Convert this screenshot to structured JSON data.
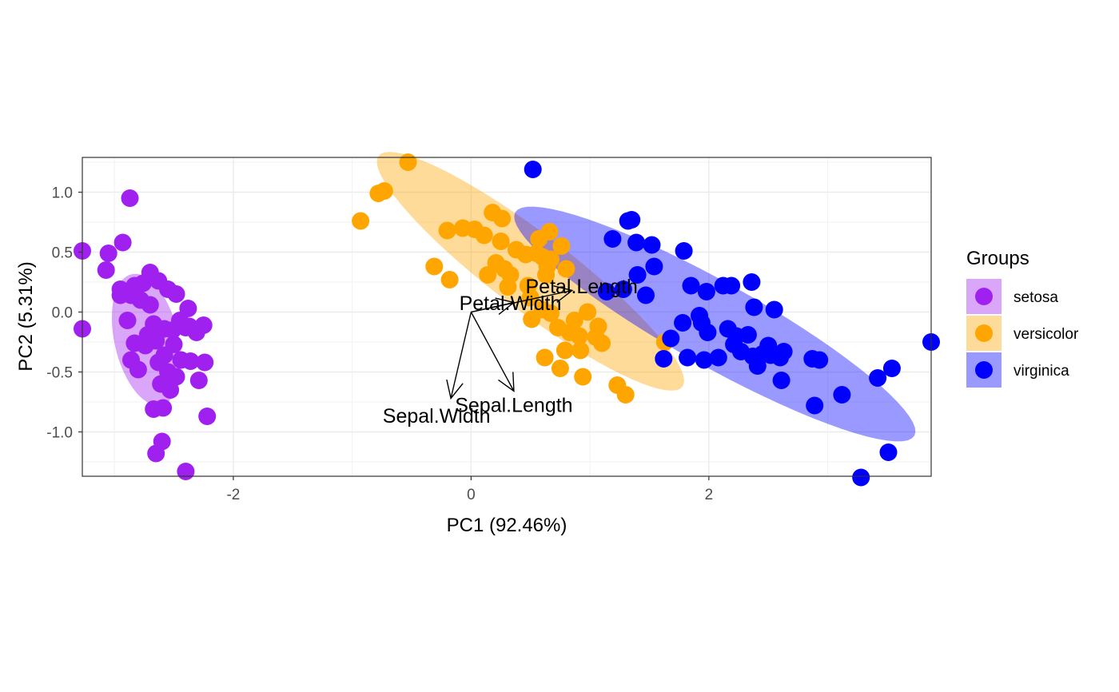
{
  "chart_data": {
    "type": "scatter",
    "title": "",
    "xlabel": "PC1 (92.46%)",
    "ylabel": "PC2 (5.31%)",
    "xlim": [
      -3.27,
      3.87
    ],
    "ylim": [
      -1.37,
      1.29
    ],
    "x_ticks": [
      -2,
      0,
      2
    ],
    "x_tick_labels": [
      "-2",
      "0",
      "2"
    ],
    "y_ticks": [
      -1.0,
      -0.5,
      0.0,
      0.5,
      1.0
    ],
    "y_tick_labels": [
      "-1.0",
      "-0.5",
      "0.0",
      "0.5",
      "1.0"
    ],
    "grid": true,
    "legend": {
      "title": "Groups",
      "position": "right"
    },
    "series": [
      {
        "name": "setosa",
        "color": "#A020F0",
        "ellipse": {
          "cx": -2.73,
          "cy": -0.23,
          "rx": 0.56,
          "ry": 0.27,
          "angle_deg": -77
        },
        "points": [
          [
            -3.27,
            0.51
          ],
          [
            -2.87,
            0.95
          ],
          [
            -2.93,
            0.58
          ],
          [
            -3.05,
            0.49
          ],
          [
            -3.07,
            0.35
          ],
          [
            -2.95,
            0.19
          ],
          [
            -2.83,
            0.22
          ],
          [
            -2.76,
            0.24
          ],
          [
            -2.7,
            0.33
          ],
          [
            -2.63,
            0.26
          ],
          [
            -2.55,
            0.19
          ],
          [
            -2.48,
            0.15
          ],
          [
            -2.95,
            0.14
          ],
          [
            -2.86,
            0.14
          ],
          [
            -2.78,
            0.1
          ],
          [
            -2.89,
            -0.07
          ],
          [
            -2.67,
            -0.1
          ],
          [
            -2.58,
            -0.14
          ],
          [
            -2.51,
            -0.15
          ],
          [
            -2.45,
            -0.07
          ],
          [
            -2.38,
            0.03
          ],
          [
            -2.37,
            -0.12
          ],
          [
            -2.31,
            -0.17
          ],
          [
            -2.25,
            -0.11
          ],
          [
            -2.83,
            -0.26
          ],
          [
            -2.74,
            -0.28
          ],
          [
            -2.65,
            -0.24
          ],
          [
            -2.58,
            -0.36
          ],
          [
            -2.55,
            -0.5
          ],
          [
            -2.61,
            -0.6
          ],
          [
            -2.48,
            -0.54
          ],
          [
            -2.44,
            -0.4
          ],
          [
            -2.36,
            -0.41
          ],
          [
            -2.24,
            -0.42
          ],
          [
            -2.29,
            -0.57
          ],
          [
            -2.53,
            -0.65
          ],
          [
            -2.59,
            -0.8
          ],
          [
            -2.67,
            -0.81
          ],
          [
            -2.6,
            -1.08
          ],
          [
            -2.65,
            -1.18
          ],
          [
            -2.4,
            -1.33
          ],
          [
            -2.22,
            -0.87
          ],
          [
            -2.8,
            -0.48
          ],
          [
            -2.86,
            -0.4
          ],
          [
            -3.27,
            -0.14
          ],
          [
            -2.7,
            0.06
          ],
          [
            -2.5,
            -0.27
          ],
          [
            -2.4,
            -0.13
          ],
          [
            -2.72,
            -0.19
          ],
          [
            -2.63,
            -0.42
          ]
        ]
      },
      {
        "name": "versicolor",
        "color": "#FFA500",
        "ellipse": {
          "cx": 0.5,
          "cy": 0.34,
          "rx": 1.6,
          "ry": 0.32,
          "angle_deg": -37
        },
        "points": [
          [
            -0.53,
            1.25
          ],
          [
            -0.73,
            1.01
          ],
          [
            -0.78,
            0.99
          ],
          [
            -0.93,
            0.76
          ],
          [
            0.18,
            0.83
          ],
          [
            0.26,
            0.78
          ],
          [
            -0.2,
            0.68
          ],
          [
            -0.07,
            0.7
          ],
          [
            0.03,
            0.69
          ],
          [
            0.11,
            0.64
          ],
          [
            0.25,
            0.59
          ],
          [
            0.38,
            0.52
          ],
          [
            0.57,
            0.61
          ],
          [
            0.46,
            0.48
          ],
          [
            0.6,
            0.46
          ],
          [
            0.55,
            0.49
          ],
          [
            0.66,
            0.67
          ],
          [
            0.76,
            0.55
          ],
          [
            0.64,
            0.38
          ],
          [
            0.67,
            0.44
          ],
          [
            0.21,
            0.41
          ],
          [
            0.28,
            0.36
          ],
          [
            0.33,
            0.31
          ],
          [
            0.14,
            0.31
          ],
          [
            0.31,
            0.21
          ],
          [
            0.48,
            0.22
          ],
          [
            0.5,
            0.12
          ],
          [
            -0.31,
            0.38
          ],
          [
            -0.18,
            0.27
          ],
          [
            0.63,
            0.31
          ],
          [
            0.8,
            0.36
          ],
          [
            0.6,
            0.02
          ],
          [
            0.51,
            -0.06
          ],
          [
            0.67,
            -0.01
          ],
          [
            0.73,
            -0.13
          ],
          [
            0.87,
            -0.07
          ],
          [
            0.98,
            0.0
          ],
          [
            0.91,
            -0.2
          ],
          [
            0.83,
            -0.17
          ],
          [
            0.92,
            -0.32
          ],
          [
            1.07,
            -0.12
          ],
          [
            1.05,
            -0.21
          ],
          [
            1.1,
            -0.26
          ],
          [
            0.79,
            -0.32
          ],
          [
            0.62,
            -0.38
          ],
          [
            0.75,
            -0.47
          ],
          [
            0.94,
            -0.54
          ],
          [
            1.23,
            -0.61
          ],
          [
            1.3,
            -0.69
          ],
          [
            1.63,
            -0.25
          ]
        ]
      },
      {
        "name": "virginica",
        "color": "#0000FF",
        "ellipse": {
          "cx": 2.05,
          "cy": -0.1,
          "rx": 1.92,
          "ry": 0.35,
          "angle_deg": -29
        },
        "points": [
          [
            0.52,
            1.19
          ],
          [
            1.32,
            0.76
          ],
          [
            1.35,
            0.77
          ],
          [
            1.19,
            0.61
          ],
          [
            1.39,
            0.58
          ],
          [
            1.52,
            0.56
          ],
          [
            1.79,
            0.51
          ],
          [
            1.4,
            0.31
          ],
          [
            1.54,
            0.38
          ],
          [
            1.47,
            0.14
          ],
          [
            1.28,
            0.19
          ],
          [
            1.14,
            0.17
          ],
          [
            1.85,
            0.22
          ],
          [
            1.98,
            0.17
          ],
          [
            2.12,
            0.22
          ],
          [
            2.19,
            0.22
          ],
          [
            2.36,
            0.25
          ],
          [
            2.38,
            0.04
          ],
          [
            2.55,
            0.02
          ],
          [
            1.92,
            -0.03
          ],
          [
            1.94,
            -0.09
          ],
          [
            1.99,
            -0.17
          ],
          [
            1.78,
            -0.09
          ],
          [
            1.68,
            -0.22
          ],
          [
            2.16,
            -0.14
          ],
          [
            2.23,
            -0.2
          ],
          [
            2.33,
            -0.19
          ],
          [
            2.21,
            -0.27
          ],
          [
            2.27,
            -0.33
          ],
          [
            2.37,
            -0.37
          ],
          [
            2.45,
            -0.35
          ],
          [
            2.52,
            -0.36
          ],
          [
            2.6,
            -0.38
          ],
          [
            2.63,
            -0.33
          ],
          [
            2.87,
            -0.39
          ],
          [
            2.93,
            -0.4
          ],
          [
            2.08,
            -0.38
          ],
          [
            1.96,
            -0.4
          ],
          [
            2.41,
            -0.45
          ],
          [
            2.61,
            -0.57
          ],
          [
            2.89,
            -0.78
          ],
          [
            3.12,
            -0.69
          ],
          [
            3.42,
            -0.55
          ],
          [
            3.54,
            -0.47
          ],
          [
            3.87,
            -0.25
          ],
          [
            3.51,
            -1.17
          ],
          [
            3.28,
            -1.38
          ],
          [
            2.5,
            -0.28
          ],
          [
            1.62,
            -0.39
          ],
          [
            1.82,
            -0.38
          ]
        ]
      }
    ],
    "loadings": [
      {
        "label": "Petal.Length",
        "x": 0.85,
        "y": 0.18,
        "label_x": 0.93,
        "label_y": 0.21
      },
      {
        "label": "Petal.Width",
        "x": 0.36,
        "y": 0.08,
        "label_x": 0.33,
        "label_y": 0.07
      },
      {
        "label": "Sepal.Length",
        "x": 0.36,
        "y": -0.66,
        "label_x": 0.36,
        "label_y": -0.78
      },
      {
        "label": "Sepal.Width",
        "x": -0.17,
        "y": -0.72,
        "label_x": -0.29,
        "label_y": -0.87
      }
    ]
  }
}
